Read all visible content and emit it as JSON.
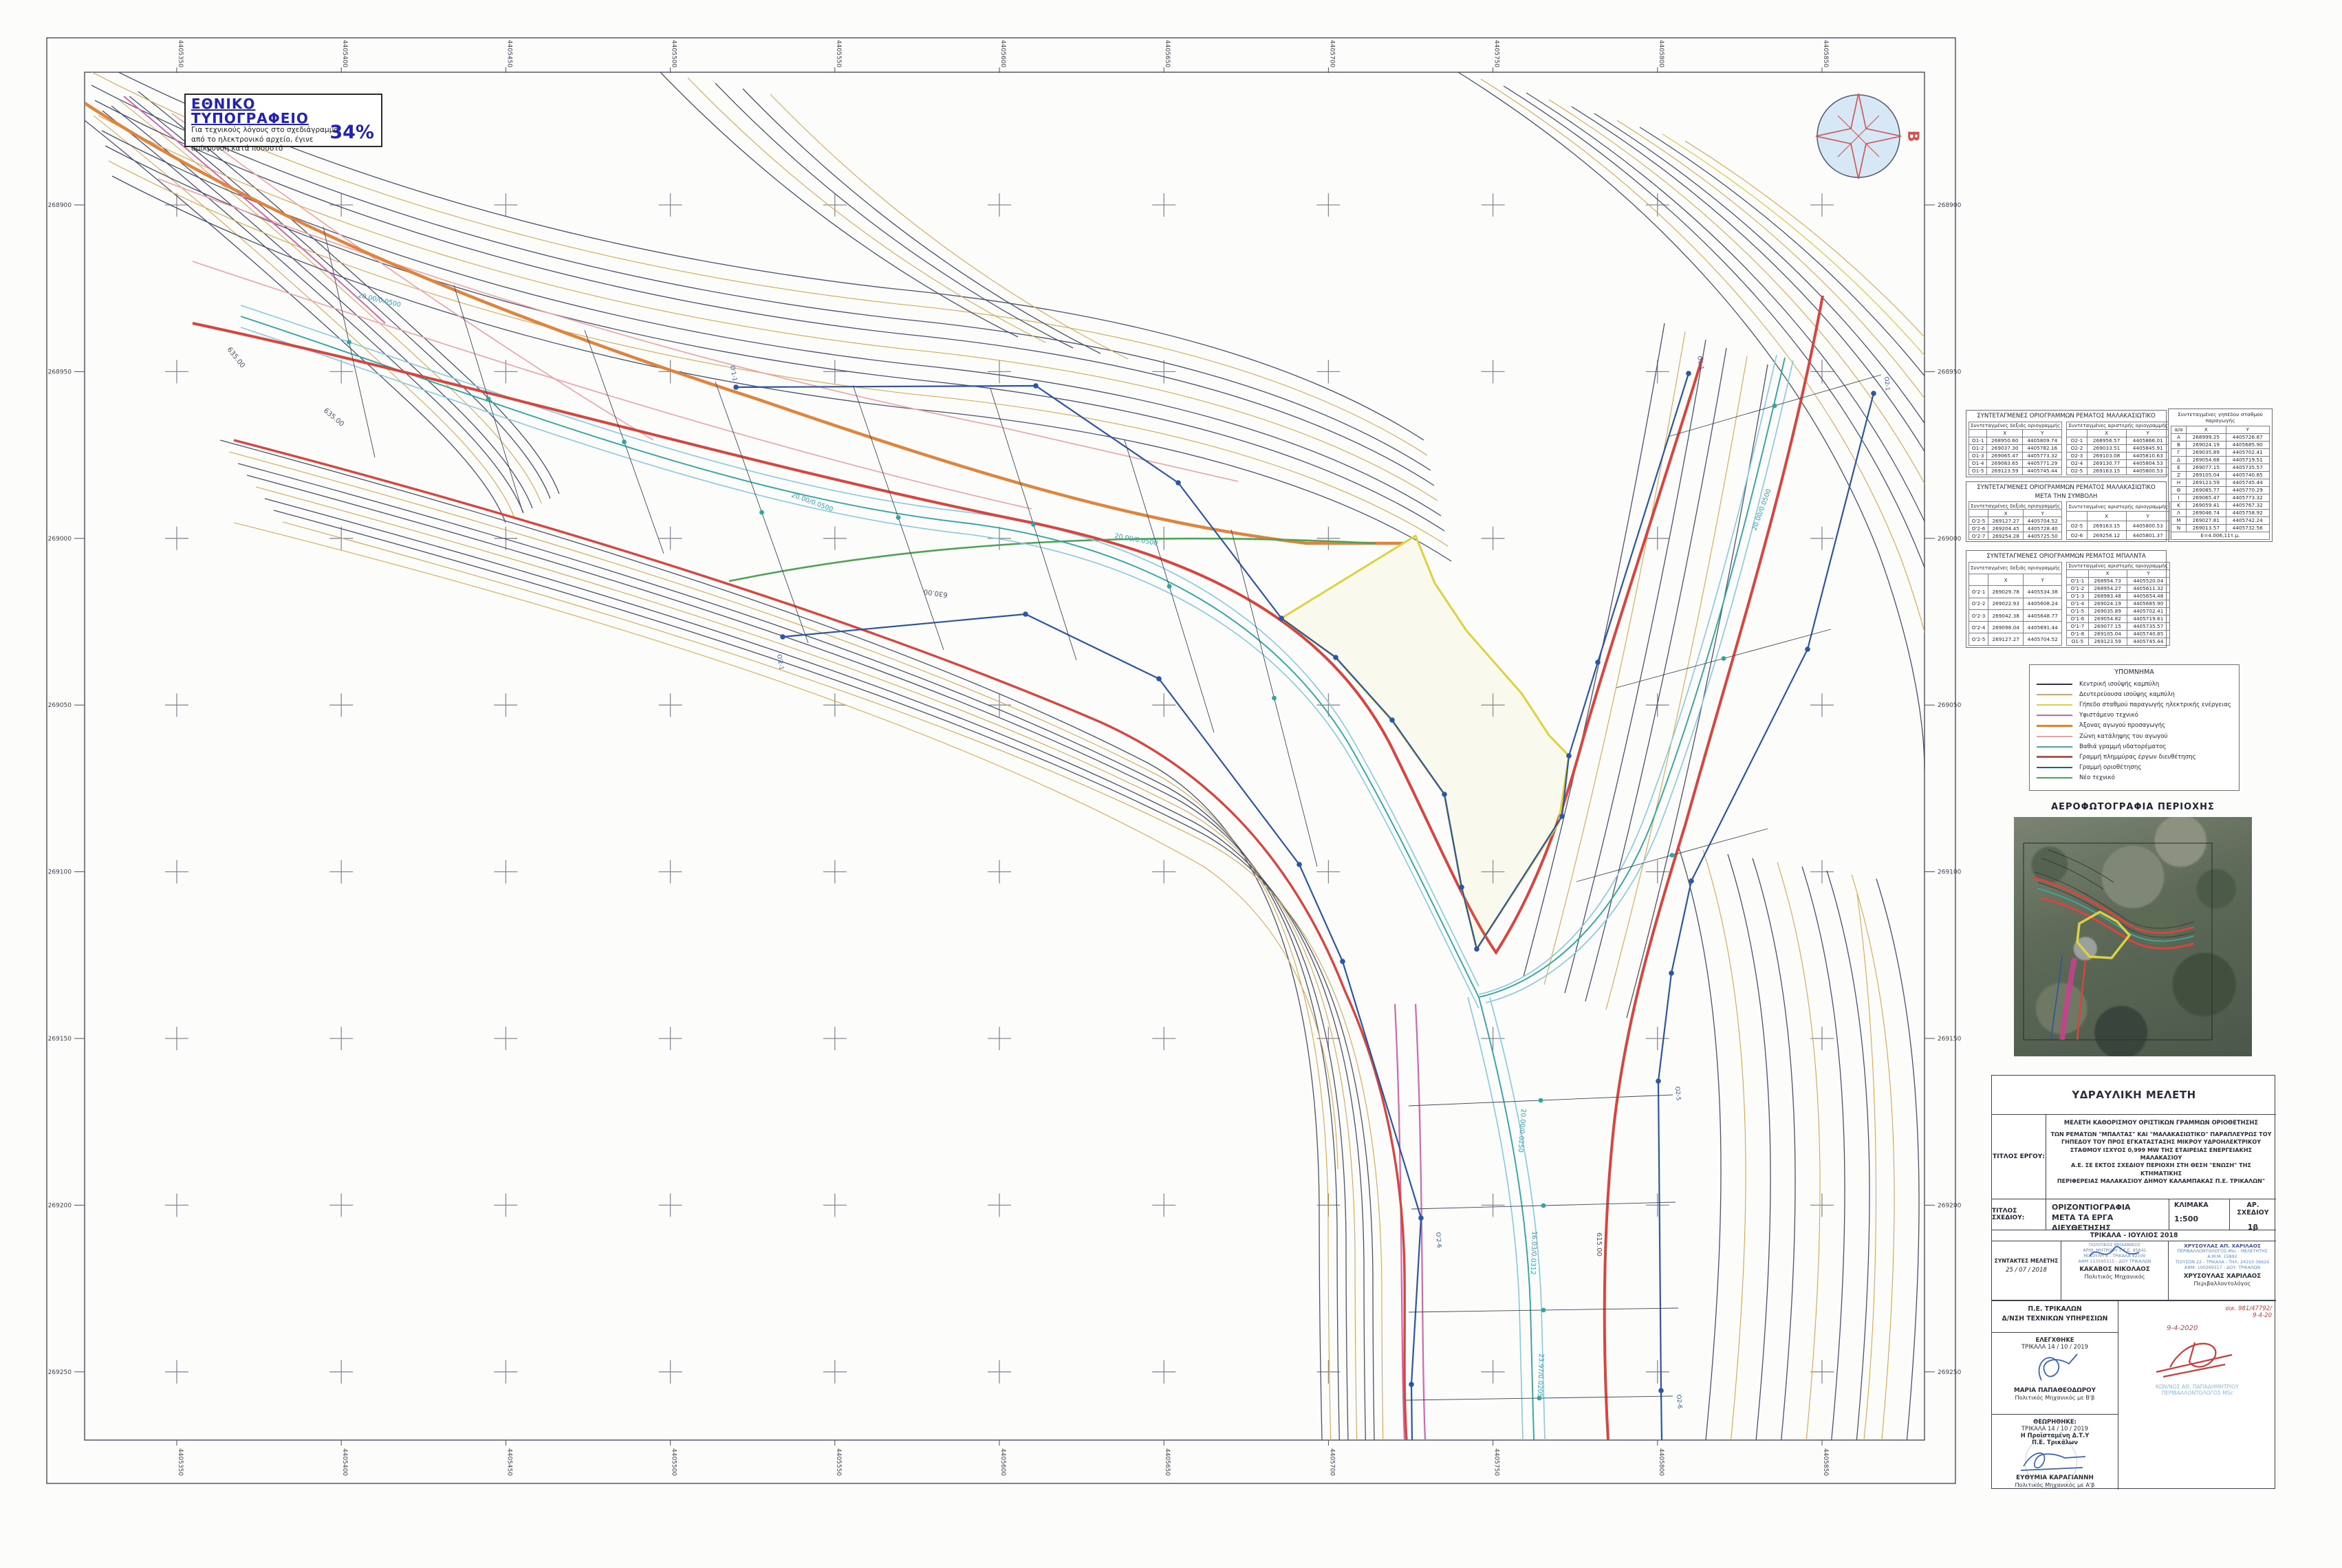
{
  "stamp": {
    "title": "ΕΘΝΙΚΟ ΤΥΠΟΓΡΑΦΕΙΟ",
    "line1": "Για τεχνικούς λόγους στο σχεδιάγραμμα,",
    "line2": "από το ηλεκτρονικό αρχείο, έγινε",
    "line3": "σμίκρυνση κατά ποσοστό",
    "percent": "34%"
  },
  "compass": {
    "north_label": "Β"
  },
  "map": {
    "ticks_top": [
      "4405350",
      "4405400",
      "4405450",
      "4405500",
      "4405550",
      "4405600",
      "4405650",
      "4405700",
      "4405750",
      "4405800",
      "4405850"
    ],
    "ticks_bottom": [
      "4405350",
      "4405400",
      "4405450",
      "4405500",
      "4405550",
      "4405600",
      "4405650",
      "4405700",
      "4405750",
      "4405800",
      "4405850"
    ],
    "ticks_left": [
      "268900",
      "268950",
      "269000",
      "269050",
      "269100",
      "269150",
      "269200",
      "269250"
    ],
    "ticks_right": [
      "268900",
      "268950",
      "269000",
      "269050",
      "269100",
      "269150",
      "269200",
      "269250"
    ],
    "contour_labels": [
      "635.00",
      "635.00",
      "630.00",
      "615.00"
    ],
    "flow_labels": [
      "20.00/0.0500",
      "20.00/0.0500",
      "20.00/0.0500",
      "20.00/0.0250",
      "16.03/0.0312",
      "23.97/0.0205",
      "20.00/0.0500"
    ],
    "boundary_point_labels": [
      "Ο1-1",
      "Ο2-1",
      "Ο'1-1",
      "Ο'2-1",
      "Ο2-5",
      "Ο'2-6",
      "Ο2-6"
    ]
  },
  "tables": {
    "t1": {
      "title_lines": [
        "ΣΥΝΤΕΤΑΓΜΕΝΕΣ ΟΡΙΟΓΡΑΜΜΩΝ ΡΕΜΑΤΟΣ ΜΑΛΑΚΑΣΙΩΤΙΚΟ"
      ],
      "left": {
        "header": "Συντεταγμένες δεξιάς οριογραμμής",
        "cols": [
          "",
          "X",
          "Y"
        ],
        "rows": [
          [
            "Ο1-1",
            "268950.60",
            "4405809.74"
          ],
          [
            "Ο1-2",
            "269037.30",
            "4405782.16"
          ],
          [
            "Ο1-3",
            "269065.47",
            "4405773.32"
          ],
          [
            "Ο1-4",
            "269083.65",
            "4405771.29"
          ],
          [
            "Ο1-5",
            "269123.59",
            "4405745.44"
          ]
        ]
      },
      "right": {
        "header": "Συντεταγμένες αριστερής οριογραμμής",
        "cols": [
          "",
          "X",
          "Y"
        ],
        "rows": [
          [
            "Ο2-1",
            "268956.57",
            "4405866.01"
          ],
          [
            "Ο2-2",
            "269033.51",
            "4405845.91"
          ],
          [
            "Ο2-3",
            "269103.08",
            "4405810.63"
          ],
          [
            "Ο2-4",
            "269130.77",
            "4405804.53"
          ],
          [
            "Ο2-5",
            "269163.15",
            "4405800.53"
          ]
        ]
      }
    },
    "t2": {
      "title_lines": [
        "ΣΥΝΤΕΤΑΓΜΕΝΕΣ ΟΡΙΟΓΡΑΜΜΩΝ ΡΕΜΑΤΟΣ ΜΑΛΑΚΑΣΙΩΤΙΚΟ",
        "ΜΕΤΑ ΤΗΝ ΣΥΜΒΟΛΗ"
      ],
      "left": {
        "header": "Συντεταγμένες δεξιάς οριογραμμής",
        "cols": [
          "",
          "X",
          "Y"
        ],
        "rows": [
          [
            "Ο'2-5",
            "269127.27",
            "4405704.52"
          ],
          [
            "Ο'2-6",
            "269204.45",
            "4405728.40"
          ],
          [
            "Ο'2-7",
            "269254.28",
            "4405725.50"
          ]
        ]
      },
      "right": {
        "header": "Συντεταγμένες αριστερής οριογραμμής",
        "cols": [
          "",
          "X",
          "Y"
        ],
        "rows": [
          [
            "Ο2-5",
            "269163.15",
            "4405800.53"
          ],
          [
            "Ο2-6",
            "269256.12",
            "4405801.37"
          ]
        ]
      }
    },
    "t3": {
      "title_lines": [
        "ΣΥΝΤΕΤΑΓΜΕΝΕΣ ΟΡΙΟΓΡΑΜΜΩΝ ΡΕΜΑΤΟΣ ΜΠΑΛΝΤΑ"
      ],
      "left": {
        "header": "Συντεταγμένες δεξιάς οριογραμμής",
        "cols": [
          "",
          "X",
          "Y"
        ],
        "rows": [
          [
            "Ο'2-1",
            "269029.78",
            "4405534.38"
          ],
          [
            "Ο'2-2",
            "269022.93",
            "4405608.24"
          ],
          [
            "Ο'2-3",
            "269042.38",
            "4405648.77"
          ],
          [
            "Ο'2-4",
            "269098.04",
            "4405691.44"
          ],
          [
            "Ο'2-5",
            "269127.27",
            "4405704.52"
          ]
        ]
      },
      "right": {
        "header": "Συντεταγμένες αριστερής οριογραμμής",
        "cols": [
          "",
          "X",
          "Y"
        ],
        "rows": [
          [
            "Ο'1-1",
            "268954.73",
            "4405520.04"
          ],
          [
            "Ο'1-2",
            "268954.27",
            "4405611.32"
          ],
          [
            "Ο'1-3",
            "268983.48",
            "4405654.48"
          ],
          [
            "Ο'1-4",
            "269024.19",
            "4405685.90"
          ],
          [
            "Ο'1-5",
            "269035.89",
            "4405702.41"
          ],
          [
            "Ο'1-6",
            "269054.82",
            "4405719.61"
          ],
          [
            "Ο'1-7",
            "269077.15",
            "4405735.57"
          ],
          [
            "Ο'1-8",
            "269105.04",
            "4405740.85"
          ],
          [
            "Ο1-5",
            "269123.59",
            "4405745.44"
          ]
        ]
      }
    },
    "station": {
      "title": "Συντεταγμένες γηπέδου σταθμού παραγωγής",
      "cols": [
        "α/α",
        "X",
        "Y"
      ],
      "rows": [
        [
          "Α",
          "268999.25",
          "4405726.87"
        ],
        [
          "Β",
          "269024.19",
          "4405685.90"
        ],
        [
          "Γ",
          "269035.89",
          "4405702.41"
        ],
        [
          "Δ",
          "269054.68",
          "4405719.51"
        ],
        [
          "Ε",
          "269077.15",
          "4405735.57"
        ],
        [
          "Ζ",
          "269105.04",
          "4405740.85"
        ],
        [
          "Η",
          "269123.59",
          "4405745.44"
        ],
        [
          "Θ",
          "269085.77",
          "4405770.29"
        ],
        [
          "Ι",
          "269065.47",
          "4405773.32"
        ],
        [
          "Κ",
          "269059.41",
          "4405767.32"
        ],
        [
          "Λ",
          "269046.74",
          "4405758.92"
        ],
        [
          "Μ",
          "269027.81",
          "4405742.24"
        ],
        [
          "Ν",
          "269013.57",
          "4405732.56"
        ]
      ],
      "footer": "Ε=4.006,11τ.μ."
    }
  },
  "legend": {
    "title": "ΥΠΟΜΝΗΜΑ",
    "items": [
      {
        "label": "Κεντρική ισοϋψής καμπύλη",
        "color": "#2e3440",
        "weight": 2
      },
      {
        "label": "Δευτερεύουσα ισοϋψης καμπύλη",
        "color": "#d9a84e",
        "weight": 2
      },
      {
        "label": "Γήπεδο σταθμού παραγωγής ηλεκτρικής ενέργειας",
        "color": "#ddd23e",
        "weight": 2.5
      },
      {
        "label": "Υφιστάμενο τεχνικό",
        "color": "#d168ab",
        "weight": 2
      },
      {
        "label": "Άξονας αγωγού προσαγωγής",
        "color": "#e0833c",
        "weight": 3
      },
      {
        "label": "Ζώνη κατάληψης του αγωγού",
        "color": "#efa0a5",
        "weight": 2
      },
      {
        "label": "Βαθιά γραμμή υδατορέματος",
        "color": "#3aafa9",
        "weight": 2
      },
      {
        "label": "Γραμμή πλημμύρας έργων διευθέτησης",
        "color": "#d8453e",
        "weight": 3
      },
      {
        "label": "Γραμμή οριοθέτησης",
        "color": "#2b55a5",
        "weight": 2.5
      },
      {
        "label": "Νέο τεχνικό",
        "color": "#4ea353",
        "weight": 2
      }
    ]
  },
  "aerial": {
    "title": "ΑΕΡΟΦΩΤΟΓΡΑΦΙΑ ΠΕΡΙΟΧΗΣ"
  },
  "title_block": {
    "header": "ΥΔΡΑΥΛΙΚΗ ΜΕΛΕΤΗ",
    "project_label": "ΤΙΤΛΟΣ  ΕΡΓΟΥ:",
    "project_intro": "ΜΕΛΕΤΗ ΚΑΘΟΡΙΣΜΟΥ ΟΡΙΣΤΙΚΩΝ ΓΡΑΜΜΩΝ ΟΡΙΟΘΕΤΗΣΗΣ",
    "project_lines": [
      "ΤΩΝ ΡΕΜΑΤΩΝ \"ΜΠΑΛΤΑΣ\" ΚΑΙ \"ΜΑΛΑΚΑΣΙΩΤΙΚΟ\" ΠΑΡΑΠΛΕΥΡΩΣ ΤΟΥ",
      "ΓΗΠΕΔΟΥ ΤΟΥ ΠΡΟΣ  ΕΓΚΑΤΑΣΤΑΣΗΣ ΜΙΚΡΟΥ ΥΔΡΟΗΛΕΚΤΡΙΚΟΥ",
      "ΣΤΑΘΜΟΥ ΙΣΧΥΟΣ 0,999 MW ΤΗΣ ΕΤΑΙΡΕΙΑΣ ΕΝΕΡΓΕΙΑΚΗΣ ΜΑΛΑΚΑΣΙΟΥ",
      "Α.Ε. ΣΕ ΕΚΤΟΣ ΣΧΕΔΙΟΥ ΠΕΡΙΟΧΗ  ΣΤΗ ΘΕΣΗ \"ΕΝΩΣΗ\" ΤΗΣ ΚΤΗΜΑΤΙΚΗΣ",
      "ΠΕΡΙΦΕΡΕΙΑΣ ΜΑΛΑΚΑΣΙΟΥ ΔΗΜΟΥ ΚΑΛΑΜΠΑΚΑΣ Π.Ε. ΤΡΙΚΑΛΩΝ\""
    ],
    "drawing_label": "ΤΙΤΛΟΣ ΣΧΕΔΙΟΥ:",
    "drawing_title1": "ΟΡΙΖΟΝΤΙΟΓΡΑΦΙΑ",
    "drawing_title2": "ΜΕΤΑ ΤΑ ΕΡΓΑ ΔΙΕΥΘΕΤΗΣΗΣ",
    "scale_label": "ΚΛΙΜΑΚΑ",
    "scale_value": "1:500",
    "sheet_no_label": "ΑΡ. ΣΧΕΔΙΟΥ",
    "sheet_no_value": "1β",
    "place_date": "ΤΡΙΚΑΛΑ - ΙΟΥΛΙΟΣ 2018",
    "authors_label": "ΣΥΝΤΑΚΤΕΣ ΜΕΛΕΤΗΣ",
    "authors_date": "25 / 07 / 2018",
    "author1_name": "ΚΑΚΑΒΟΣ ΝΙΚΟΛΑΟΣ",
    "author1_role": "Πολιτικός Μηχανικός",
    "author1_stamp_lines": [
      "ΠΟΛΙΤΙΚΟΣ ΜΗΧΑΝΙΚΟΣ",
      "ΑΡΙΘ. ΜΗΤΡΩΟΥ Τ.Ε.Ε. 95841",
      "ΜΙΑΟΥΛΗ 4 - ΤΡΙΚΑΛΑ 42100",
      "ΑΦΜ 113595515 - ΔΟΥ ΤΡΙΚΑΛΩΝ"
    ],
    "author2_name": "ΧΡΥΣΟΥΛΑΣ ΧΑΡΙΛΑΟΣ",
    "author2_role": "Περιβαλλοντολόγος",
    "author2_stamp_lines": [
      "ΧΡΥΣΟΥΛΑΣ ΑΠ. ΧΑΡΙΛΑΟΣ",
      "ΠΕΡΙΒΑΛΛΟΝΤΟΛΟΓΟΣ-Msc - ΜΕΛΕΤΗΤΗΣ",
      "Α.Μ.Μ. 15892",
      "ΤΙΟΥΣΟΝ 22 - ΤΡΙΚΑΛΑ - ΤΗΛ: 24310 36624",
      "ΑΦΜ: 100269317 - ΔΟΥ: ΤΡΙΚΑΛΩΝ"
    ]
  },
  "approval": {
    "agency_line1": "Π.Ε. ΤΡΙΚΑΛΩΝ",
    "agency_line2": "Δ/ΝΣΗ ΤΕΧΝΙΚΩΝ ΥΠΗΡΕΣΙΩΝ",
    "checked_label": "ΕΛΕΓΧΘΗΚΕ",
    "checked_place_date": "ΤΡΙΚΑΛΑ 14 / 10 / 2019",
    "checker_name": "ΜΑΡΙΑ ΠΑΠΑΘΕΟΔΩΡΟΥ",
    "checker_role": "Πολιτικός Μηχανικός με Β'β",
    "approved_label": "ΘΕΩΡΗΘΗΚΕ:",
    "approved_place_date": "ΤΡΙΚΑΛΑ 14 / 10 / 2019",
    "approved_role1": "Η Προϊσταμένη Δ.Τ.Υ",
    "approved_role2": "Π.Ε. Τρικάλων",
    "approver_name": "ΕΥΘΥΜΙΑ ΚΑΡΑΓΙΑΝΝΗ",
    "approver_role": "Πολιτικός  Μηχανικός με Α'β",
    "protocol_number": "οικ. 981/47792/",
    "protocol_date": "9-4-20",
    "handwritten_date": "9-4-2020",
    "stamp_name": "ΚΩΝ/ΝΟΣ ΑΘ. ΠΑΠΑΔΗΜΗΤΡΙΟΥ",
    "stamp_role": "ΠΕΡΙΒΑΛΛΟΝΤΟΛΟΓΟΣ  MSc"
  }
}
